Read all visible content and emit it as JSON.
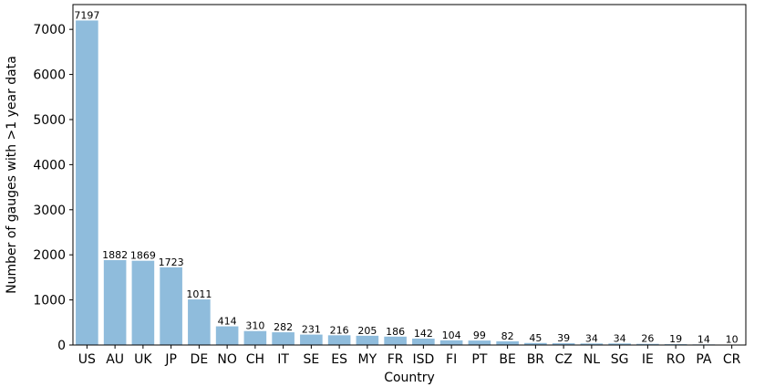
{
  "chart_data": {
    "type": "bar",
    "title": "",
    "xlabel": "Country",
    "ylabel": "Number of gauges with >1 year data",
    "ylim": [
      0,
      7550
    ],
    "yticks": [
      0,
      1000,
      2000,
      3000,
      4000,
      5000,
      6000,
      7000
    ],
    "categories": [
      "US",
      "AU",
      "UK",
      "JP",
      "DE",
      "NO",
      "CH",
      "IT",
      "SE",
      "ES",
      "MY",
      "FR",
      "ISD",
      "FI",
      "PT",
      "BE",
      "BR",
      "CZ",
      "NL",
      "SG",
      "IE",
      "RO",
      "PA",
      "CR"
    ],
    "values": [
      7197,
      1882,
      1869,
      1723,
      1011,
      414,
      310,
      282,
      231,
      216,
      205,
      186,
      142,
      104,
      99,
      82,
      45,
      39,
      34,
      34,
      26,
      19,
      14,
      10
    ],
    "bar_color": "#8fbcdc",
    "grid": false,
    "legend": "none"
  }
}
